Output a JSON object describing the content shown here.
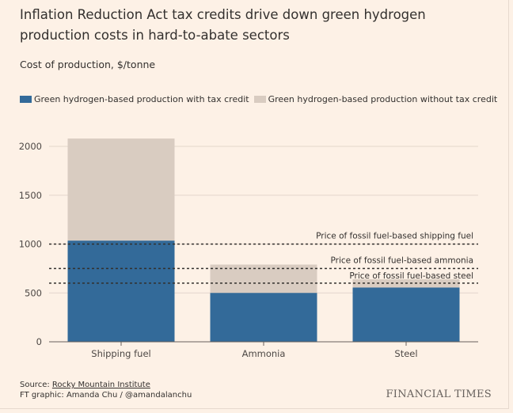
{
  "header": {
    "title": "Inflation Reduction Act tax credits drive down green hydrogen production costs in hard-to-abate sectors",
    "subtitle": "Cost of production, $/tonne"
  },
  "legend": {
    "with_credit": "Green hydrogen-based production with tax credit",
    "without_credit": "Green hydrogen-based production without tax credit"
  },
  "chart_data": {
    "type": "bar",
    "stacked": false,
    "overlapping": true,
    "categories": [
      "Shipping fuel",
      "Ammonia",
      "Steel"
    ],
    "series": [
      {
        "name": "Green hydrogen-based production without tax credit",
        "values": [
          2080,
          790,
          640
        ],
        "color": "#d9ccc1"
      },
      {
        "name": "Green hydrogen-based production with tax credit",
        "values": [
          1035,
          500,
          555
        ],
        "color": "#336a99"
      }
    ],
    "reference_lines": [
      {
        "label": "Price of fossil fuel-based shipping fuel",
        "value": 1000
      },
      {
        "label": "Price of fossil fuel-based ammonia",
        "value": 750
      },
      {
        "label": "Price of fossil fuel-based steel",
        "value": 600
      }
    ],
    "y_ticks": [
      0,
      500,
      1000,
      1500,
      2000
    ],
    "ylim": [
      0,
      2150
    ],
    "grid": true,
    "legend_position": "top-left"
  },
  "footer": {
    "source_prefix": "Source: ",
    "source_name": "Rocky Mountain Institute",
    "credit": "FT graphic: Amanda Chu / @amandalanchu",
    "brand": "FINANCIAL TIMES"
  }
}
